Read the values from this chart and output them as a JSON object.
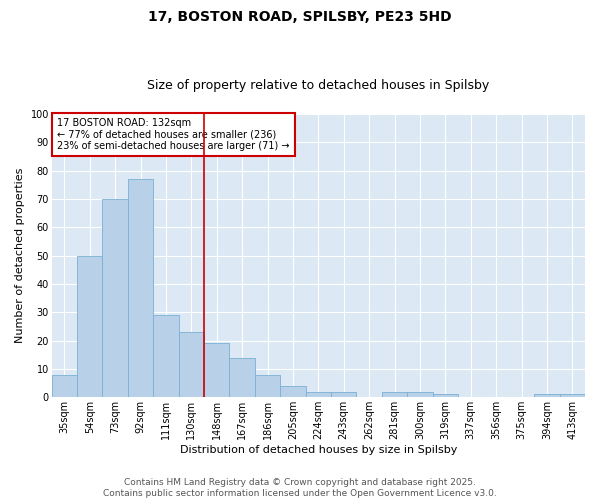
{
  "title1": "17, BOSTON ROAD, SPILSBY, PE23 5HD",
  "title2": "Size of property relative to detached houses in Spilsby",
  "xlabel": "Distribution of detached houses by size in Spilsby",
  "ylabel": "Number of detached properties",
  "categories": [
    "35sqm",
    "54sqm",
    "73sqm",
    "92sqm",
    "111sqm",
    "130sqm",
    "148sqm",
    "167sqm",
    "186sqm",
    "205sqm",
    "224sqm",
    "243sqm",
    "262sqm",
    "281sqm",
    "300sqm",
    "319sqm",
    "337sqm",
    "356sqm",
    "375sqm",
    "394sqm",
    "413sqm"
  ],
  "values": [
    8,
    50,
    70,
    77,
    29,
    23,
    19,
    14,
    8,
    4,
    2,
    2,
    0,
    2,
    2,
    1,
    0,
    0,
    0,
    1,
    1
  ],
  "bar_color": "#b8d0e8",
  "bar_edge_color": "#7aafd4",
  "bar_width": 1.0,
  "ylim": [
    0,
    100
  ],
  "yticks": [
    0,
    10,
    20,
    30,
    40,
    50,
    60,
    70,
    80,
    90,
    100
  ],
  "vline_x": 5.5,
  "vline_color": "#cc0000",
  "annotation_text": "17 BOSTON ROAD: 132sqm\n← 77% of detached houses are smaller (236)\n23% of semi-detached houses are larger (71) →",
  "annotation_box_color": "#cc0000",
  "bg_color": "#dce9f5",
  "footer_text": "Contains HM Land Registry data © Crown copyright and database right 2025.\nContains public sector information licensed under the Open Government Licence v3.0.",
  "title_fontsize": 10,
  "subtitle_fontsize": 9,
  "axis_label_fontsize": 8,
  "tick_fontsize": 7,
  "annotation_fontsize": 7,
  "footer_fontsize": 6.5
}
